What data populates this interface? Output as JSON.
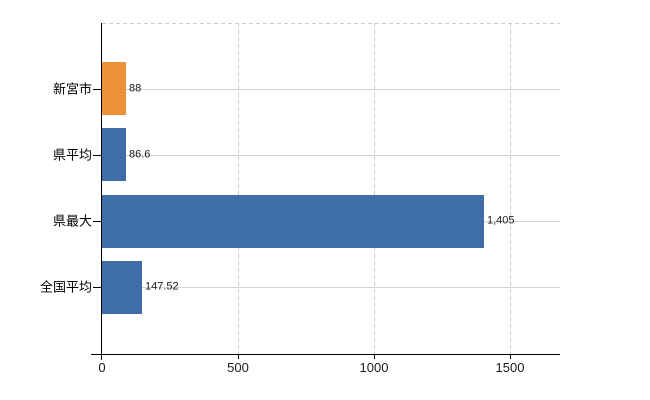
{
  "chart_data": {
    "type": "bar",
    "orientation": "horizontal",
    "title": "",
    "categories": [
      "新宮市",
      "県平均",
      "県最大",
      "全国平均"
    ],
    "values": [
      88,
      86.6,
      1405,
      147.52
    ],
    "value_labels": [
      "88",
      "86.6",
      "1,405",
      "147.52"
    ],
    "bar_colors": [
      "#EC9137",
      "#3E6DA8",
      "#3E6DA8",
      "#3E6DA8"
    ],
    "x_ticks": [
      0,
      500,
      1000,
      1500
    ],
    "x_tick_labels": [
      "0",
      "500",
      "1000",
      "1500"
    ],
    "xlim": [
      0,
      1686
    ],
    "ylim_categories": 4,
    "grid": {
      "horizontal": "solid",
      "vertical": "dashed",
      "top_border": "dashed"
    },
    "legend": "none",
    "data_labels": "outside-end"
  },
  "colors": {
    "background": "#FFFFFF",
    "bar_orange": "#EC9137",
    "bar_blue": "#3E6DA8",
    "gridline_h": "#CFD4CF",
    "gridline_v": "#CFCBD1",
    "axis": "#000000",
    "text": "#1A1A1A"
  }
}
